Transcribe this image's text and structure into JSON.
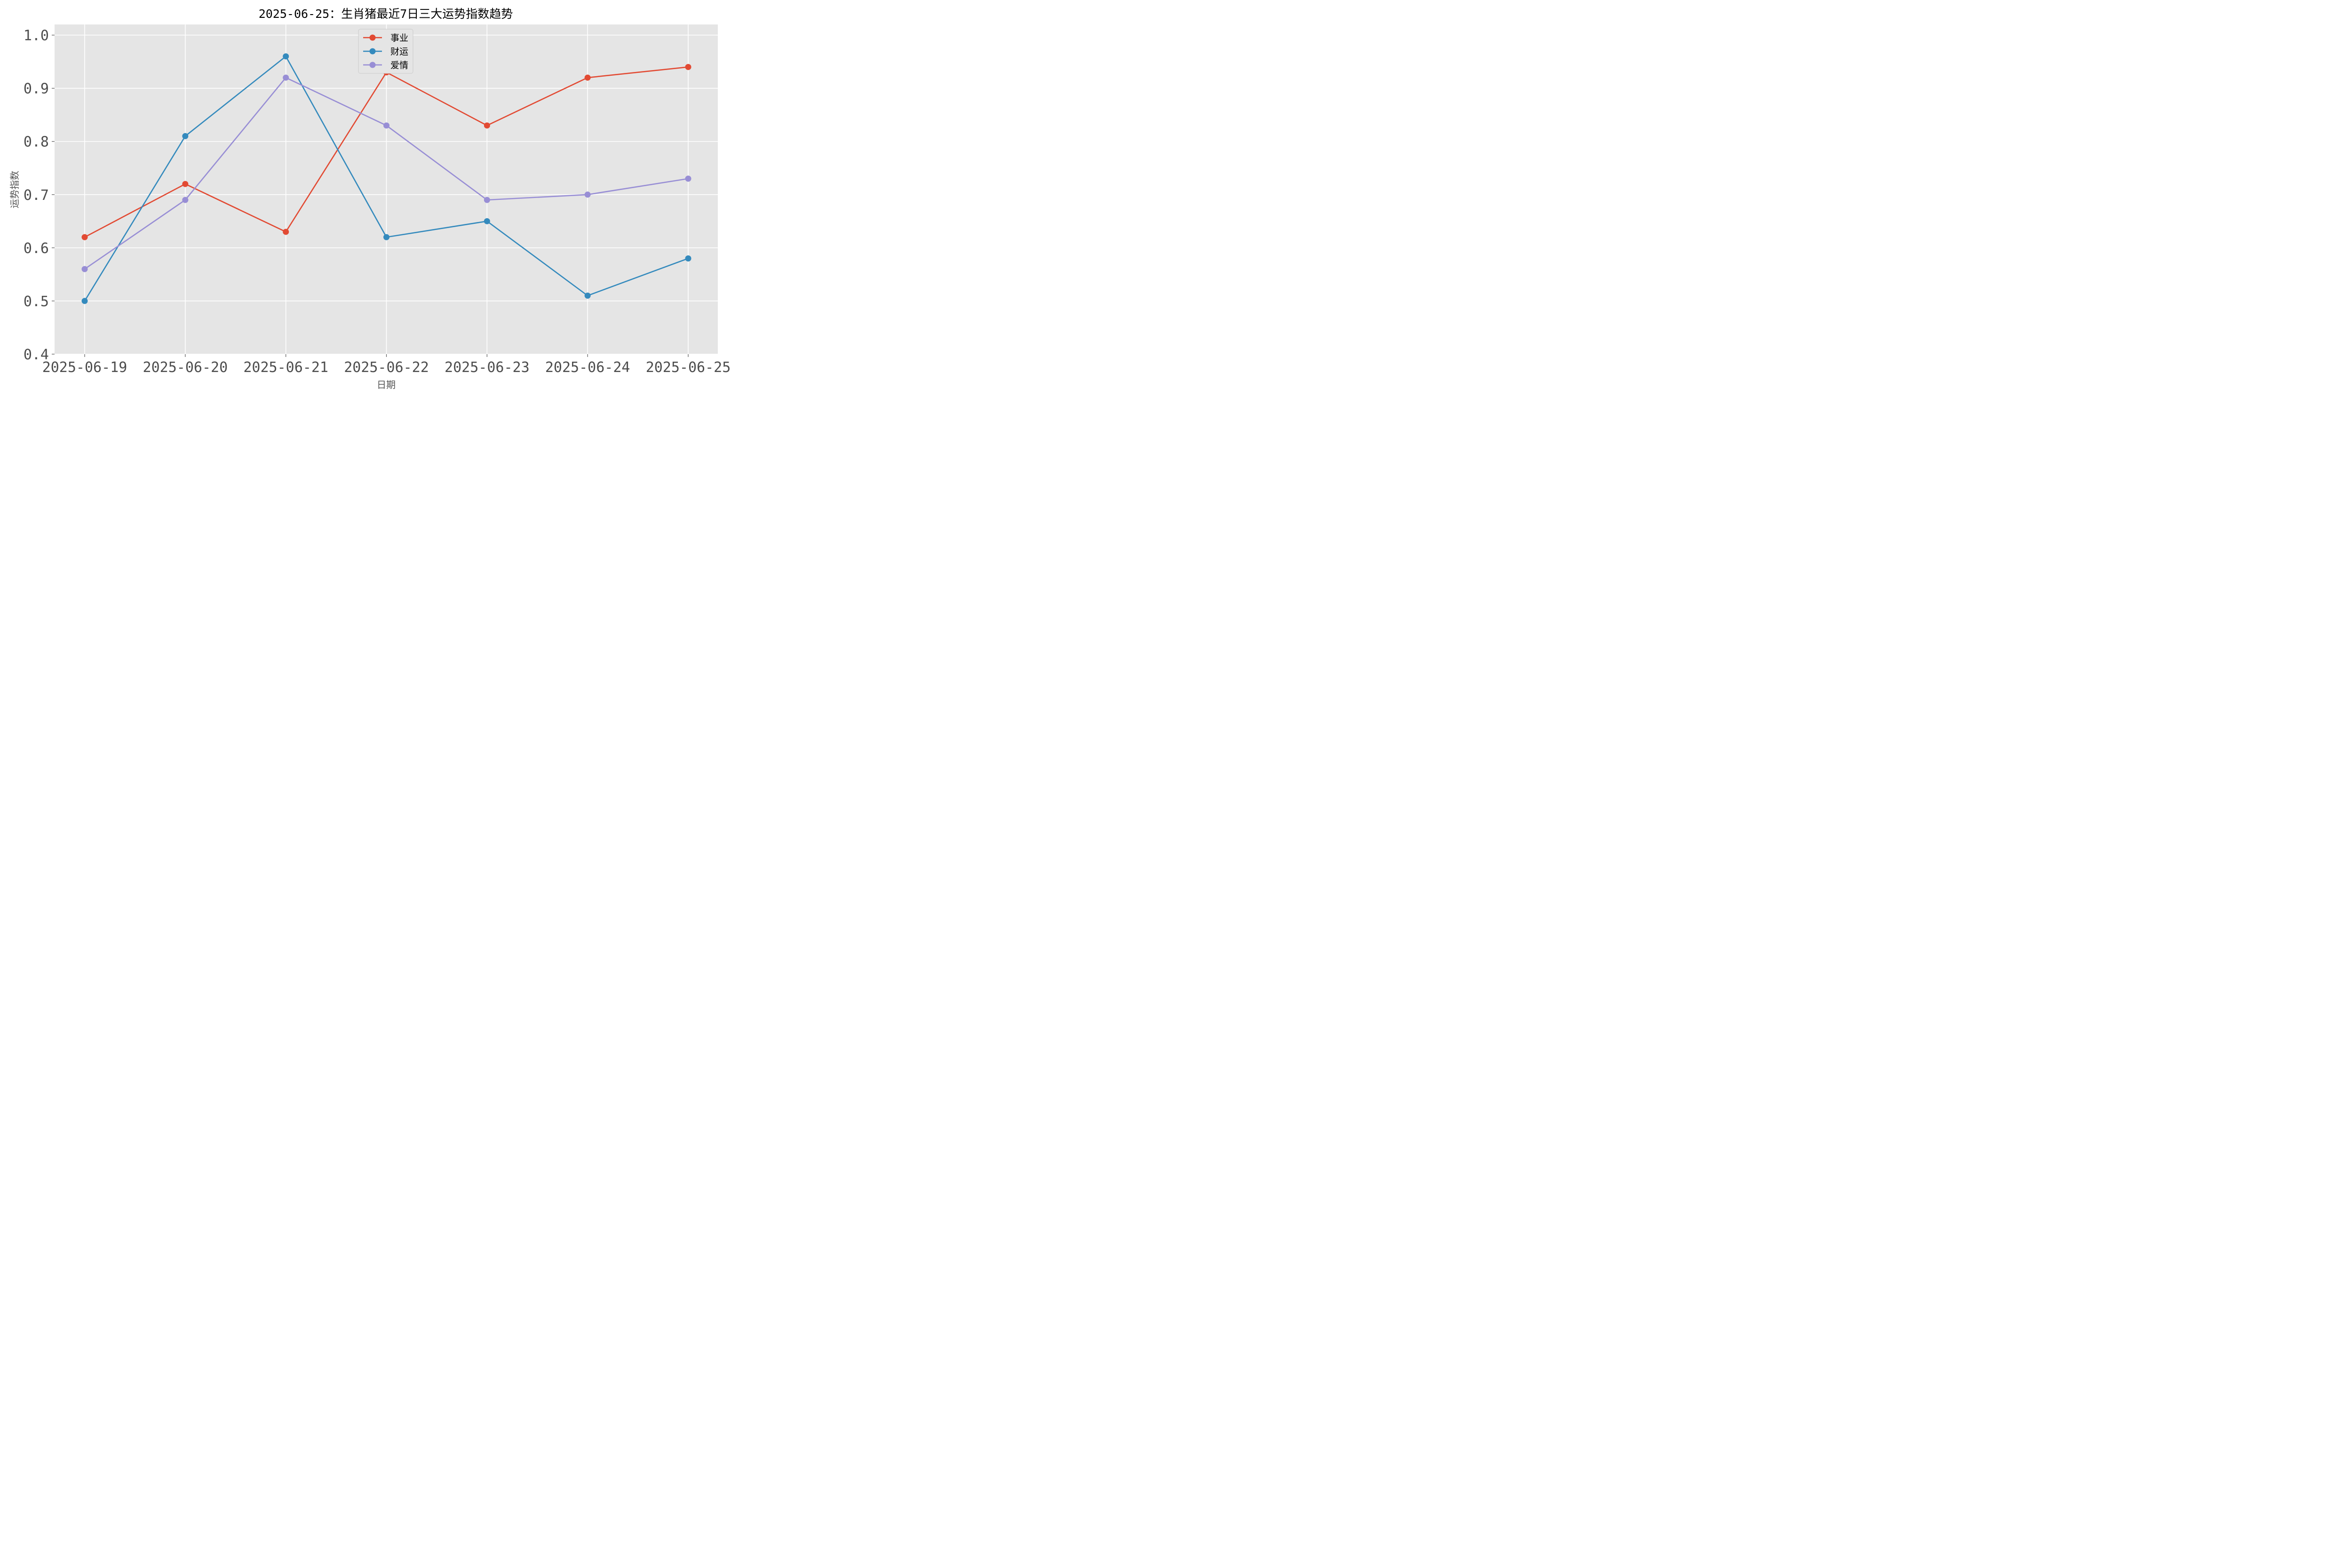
{
  "chart_data": {
    "type": "line",
    "title": "2025-06-25：生肖猪最近7日三大运势指数趋势",
    "xlabel": "日期",
    "ylabel": "运势指数",
    "categories": [
      "2025-06-19",
      "2025-06-20",
      "2025-06-21",
      "2025-06-22",
      "2025-06-23",
      "2025-06-24",
      "2025-06-25"
    ],
    "ylim": [
      0.4,
      1.02
    ],
    "yticks": [
      0.4,
      0.5,
      0.6,
      0.7,
      0.8,
      0.9,
      1.0
    ],
    "ytick_labels": [
      "0.4",
      "0.5",
      "0.6",
      "0.7",
      "0.8",
      "0.9",
      "1.0"
    ],
    "grid": true,
    "legend_position": "top-center",
    "series": [
      {
        "name": "事业",
        "color": "#e24a33",
        "values": [
          0.62,
          0.72,
          0.63,
          0.93,
          0.83,
          0.92,
          0.94
        ]
      },
      {
        "name": "财运",
        "color": "#348abd",
        "values": [
          0.5,
          0.81,
          0.96,
          0.62,
          0.65,
          0.51,
          0.58
        ]
      },
      {
        "name": "爱情",
        "color": "#988ed5",
        "values": [
          0.56,
          0.69,
          0.92,
          0.83,
          0.69,
          0.7,
          0.73
        ]
      }
    ]
  }
}
